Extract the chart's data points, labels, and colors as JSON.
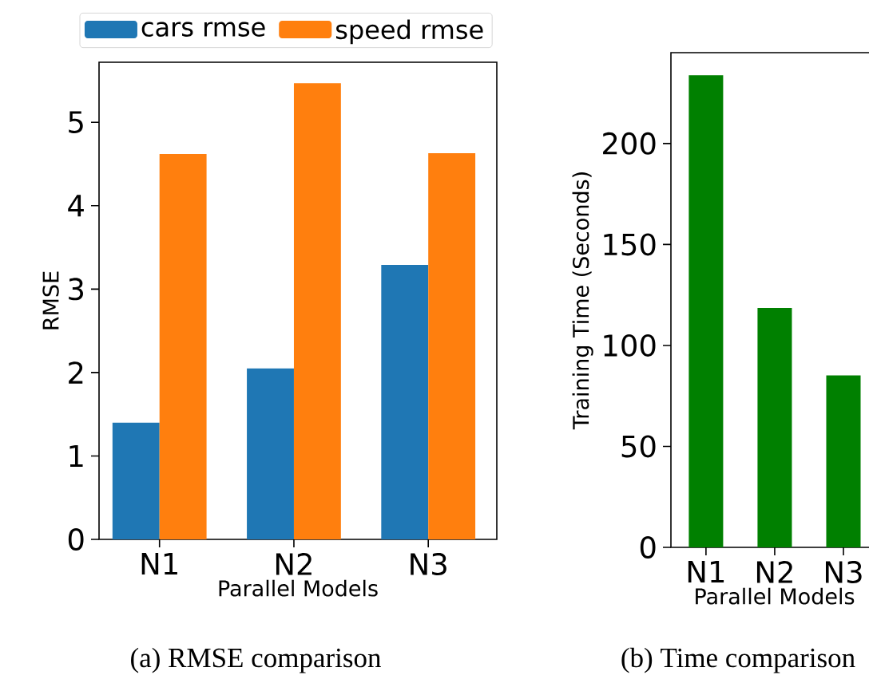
{
  "chart_data": [
    {
      "type": "bar",
      "categories": [
        "N1",
        "N2",
        "N3"
      ],
      "series": [
        {
          "name": "cars rmse",
          "color": "#1f77b4",
          "values": [
            1.4,
            2.05,
            3.29
          ]
        },
        {
          "name": "speed rmse",
          "color": "#ff7f0e",
          "values": [
            4.62,
            5.47,
            4.63
          ]
        }
      ],
      "xlabel": "Parallel Models",
      "ylabel": "RMSE",
      "ylim": [
        0,
        5.72
      ],
      "yticks": [
        0,
        1,
        2,
        3,
        4,
        5
      ],
      "legend": "top",
      "annotations": [
        "(a) RMSE comparison"
      ]
    },
    {
      "type": "bar",
      "categories": [
        "N1",
        "N2",
        "N3"
      ],
      "values": [
        233.8,
        118.5,
        85.2
      ],
      "color": "#008000",
      "xlabel": "Parallel Models",
      "ylabel": "Training Time (Seconds)",
      "ylim": [
        0,
        245
      ],
      "yticks": [
        0,
        50,
        100,
        150,
        200
      ],
      "annotations": [
        "(b) Time comparison"
      ]
    }
  ]
}
